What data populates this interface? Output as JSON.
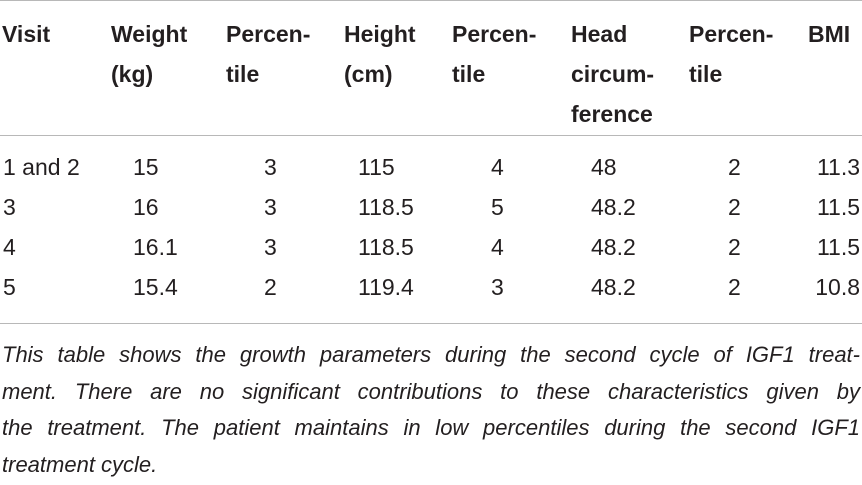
{
  "table": {
    "headers": [
      "Visit",
      "Weight\n(kg)",
      "Percen-\ntile",
      "Height\n(cm)",
      "Percen-\ntile",
      "Head\ncircum-\nference",
      "Percen-\ntile",
      "BMI"
    ],
    "rows": [
      [
        "1 and 2",
        "15",
        "3",
        "115",
        "4",
        "48",
        "2",
        "11.3"
      ],
      [
        "3",
        "16",
        "3",
        "118.5",
        "5",
        "48.2",
        "2",
        "11.5"
      ],
      [
        "4",
        "16.1",
        "3",
        "118.5",
        "4",
        "48.2",
        "2",
        "11.5"
      ],
      [
        "5",
        "15.4",
        "2",
        "119.4",
        "3",
        "48.2",
        "2",
        "10.8"
      ]
    ]
  },
  "footnote": {
    "lines": [
      "This table shows the growth parameters during the second cycle of IGF1 treat-",
      "ment. There are no significant contributions to these characteristics given by",
      "the treatment. The patient maintains in low percentiles during the second IGF1",
      "treatment cycle."
    ]
  }
}
